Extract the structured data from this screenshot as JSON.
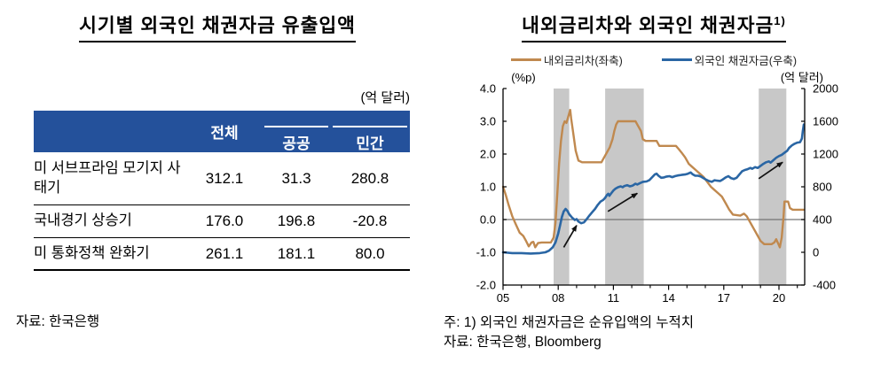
{
  "page": {
    "background": "#FFFFFF"
  },
  "chart_data": [
    {
      "type": "table",
      "title": "시기별 외국인 채권자금 유출입액",
      "unit_label": "(억 달러)",
      "columns": [
        "전체",
        "공공",
        "민간"
      ],
      "rows": [
        {
          "label": "미 서브프라임 모기지 사태기",
          "values": [
            "312.1",
            "31.3",
            "280.8"
          ]
        },
        {
          "label": "국내경기 상승기",
          "values": [
            "176.0",
            "196.8",
            "-20.8"
          ]
        },
        {
          "label": "미 통화정책 완화기",
          "values": [
            "261.1",
            "181.1",
            "80.0"
          ]
        }
      ],
      "source": "자료: 한국은행",
      "header_bg": "#24519B",
      "header_text_color": "#FFFFFF"
    },
    {
      "type": "line",
      "title": "내외금리차와 외국인 채권자금",
      "title_footnote_marker": "1)",
      "legend": [
        {
          "label": "내외금리차(좌축)",
          "color": "#C0894F"
        },
        {
          "label": "외국인 채권자금(우축)",
          "color": "#2A66A4"
        }
      ],
      "left_axis": {
        "label": "(%p)",
        "range": [
          -2.0,
          4.0
        ],
        "ticks": [
          "4.0",
          "3.0",
          "2.0",
          "1.0",
          "0.0",
          "-1.0",
          "-2.0"
        ]
      },
      "right_axis": {
        "label": "(억 달러)",
        "range": [
          -400,
          2000
        ],
        "ticks": [
          "2000",
          "1600",
          "1200",
          "800",
          "400",
          "0",
          "-400"
        ]
      },
      "x_axis": {
        "range": [
          2005,
          2021.4
        ],
        "tick_years": [
          2005,
          2008,
          2011,
          2014,
          2017,
          2020
        ],
        "tick_labels": [
          "05",
          "08",
          "11",
          "14",
          "17",
          "20"
        ],
        "minor_tick_every_year": true
      },
      "shaded_bands": [
        [
          2007.75,
          2008.6
        ],
        [
          2010.55,
          2012.65
        ],
        [
          2018.9,
          2020.4
        ]
      ],
      "band_color": "#C8C8C8",
      "zero_line": {
        "value": 0.0,
        "color": "#737373"
      },
      "series": [
        {
          "name": "내외금리차(좌축)",
          "axis": "left",
          "color": "#C0894F",
          "width": 2.4,
          "points": [
            [
              2005.0,
              1.0
            ],
            [
              2005.15,
              0.75
            ],
            [
              2005.3,
              0.45
            ],
            [
              2005.5,
              0.1
            ],
            [
              2005.7,
              -0.15
            ],
            [
              2005.9,
              -0.4
            ],
            [
              2006.1,
              -0.5
            ],
            [
              2006.25,
              -0.65
            ],
            [
              2006.4,
              -0.82
            ],
            [
              2006.55,
              -0.7
            ],
            [
              2006.65,
              -0.68
            ],
            [
              2006.75,
              -0.85
            ],
            [
              2006.9,
              -0.72
            ],
            [
              2007.1,
              -0.7
            ],
            [
              2007.6,
              -0.7
            ],
            [
              2007.75,
              -0.55
            ],
            [
              2007.85,
              -0.1
            ],
            [
              2007.95,
              0.8
            ],
            [
              2008.05,
              1.7
            ],
            [
              2008.15,
              2.4
            ],
            [
              2008.25,
              2.85
            ],
            [
              2008.35,
              3.0
            ],
            [
              2008.45,
              2.95
            ],
            [
              2008.55,
              3.15
            ],
            [
              2008.65,
              3.35
            ],
            [
              2008.7,
              3.1
            ],
            [
              2008.8,
              2.7
            ],
            [
              2008.95,
              2.1
            ],
            [
              2009.1,
              1.8
            ],
            [
              2009.3,
              1.75
            ],
            [
              2010.35,
              1.75
            ],
            [
              2010.5,
              1.9
            ],
            [
              2010.65,
              2.05
            ],
            [
              2010.8,
              2.2
            ],
            [
              2010.95,
              2.45
            ],
            [
              2011.05,
              2.7
            ],
            [
              2011.15,
              2.9
            ],
            [
              2011.25,
              3.0
            ],
            [
              2012.2,
              3.0
            ],
            [
              2012.35,
              2.85
            ],
            [
              2012.5,
              2.7
            ],
            [
              2012.6,
              2.45
            ],
            [
              2012.75,
              2.4
            ],
            [
              2013.35,
              2.4
            ],
            [
              2013.5,
              2.25
            ],
            [
              2014.4,
              2.25
            ],
            [
              2014.55,
              2.15
            ],
            [
              2014.7,
              2.05
            ],
            [
              2014.9,
              1.9
            ],
            [
              2015.1,
              1.7
            ],
            [
              2015.3,
              1.6
            ],
            [
              2015.5,
              1.5
            ],
            [
              2015.7,
              1.4
            ],
            [
              2015.9,
              1.3
            ],
            [
              2016.1,
              1.15
            ],
            [
              2016.3,
              1.0
            ],
            [
              2016.5,
              0.9
            ],
            [
              2016.7,
              0.8
            ],
            [
              2016.9,
              0.7
            ],
            [
              2017.1,
              0.5
            ],
            [
              2017.3,
              0.3
            ],
            [
              2017.5,
              0.15
            ],
            [
              2017.9,
              0.12
            ],
            [
              2018.1,
              0.18
            ],
            [
              2018.25,
              0.1
            ],
            [
              2018.4,
              -0.05
            ],
            [
              2018.6,
              -0.25
            ],
            [
              2018.8,
              -0.45
            ],
            [
              2019.0,
              -0.65
            ],
            [
              2019.2,
              -0.75
            ],
            [
              2019.6,
              -0.75
            ],
            [
              2019.75,
              -0.7
            ],
            [
              2019.85,
              -0.6
            ],
            [
              2019.95,
              -0.72
            ],
            [
              2020.05,
              -0.85
            ],
            [
              2020.15,
              -0.55
            ],
            [
              2020.25,
              0.1
            ],
            [
              2020.3,
              0.55
            ],
            [
              2020.5,
              0.55
            ],
            [
              2020.6,
              0.35
            ],
            [
              2020.75,
              0.3
            ],
            [
              2021.35,
              0.3
            ]
          ]
        },
        {
          "name": "외국인 채권자금(우축)",
          "axis": "right",
          "color": "#2A66A4",
          "width": 2.6,
          "points": [
            [
              2005.0,
              0
            ],
            [
              2005.5,
              -10
            ],
            [
              2006.0,
              -10
            ],
            [
              2006.5,
              -15
            ],
            [
              2007.0,
              -10
            ],
            [
              2007.3,
              0
            ],
            [
              2007.5,
              20
            ],
            [
              2007.7,
              60
            ],
            [
              2007.85,
              120
            ],
            [
              2008.0,
              230
            ],
            [
              2008.1,
              330
            ],
            [
              2008.2,
              430
            ],
            [
              2008.3,
              500
            ],
            [
              2008.4,
              530
            ],
            [
              2008.5,
              505
            ],
            [
              2008.6,
              465
            ],
            [
              2008.75,
              425
            ],
            [
              2008.9,
              395
            ],
            [
              2009.0,
              405
            ],
            [
              2009.1,
              375
            ],
            [
              2009.25,
              355
            ],
            [
              2009.4,
              365
            ],
            [
              2009.55,
              405
            ],
            [
              2009.7,
              450
            ],
            [
              2009.85,
              490
            ],
            [
              2010.0,
              530
            ],
            [
              2010.15,
              580
            ],
            [
              2010.3,
              620
            ],
            [
              2010.45,
              640
            ],
            [
              2010.55,
              665
            ],
            [
              2010.65,
              700
            ],
            [
              2010.72,
              715
            ],
            [
              2010.78,
              690
            ],
            [
              2010.9,
              725
            ],
            [
              2011.0,
              755
            ],
            [
              2011.1,
              775
            ],
            [
              2011.25,
              795
            ],
            [
              2011.4,
              805
            ],
            [
              2011.5,
              795
            ],
            [
              2011.6,
              810
            ],
            [
              2011.75,
              820
            ],
            [
              2011.9,
              805
            ],
            [
              2012.05,
              815
            ],
            [
              2012.2,
              838
            ],
            [
              2012.3,
              828
            ],
            [
              2012.45,
              845
            ],
            [
              2012.6,
              860
            ],
            [
              2012.8,
              865
            ],
            [
              2012.95,
              880
            ],
            [
              2013.1,
              915
            ],
            [
              2013.25,
              950
            ],
            [
              2013.35,
              960
            ],
            [
              2013.45,
              935
            ],
            [
              2013.6,
              910
            ],
            [
              2013.75,
              915
            ],
            [
              2013.9,
              925
            ],
            [
              2014.05,
              930
            ],
            [
              2014.2,
              918
            ],
            [
              2014.35,
              930
            ],
            [
              2014.5,
              938
            ],
            [
              2014.7,
              945
            ],
            [
              2014.9,
              950
            ],
            [
              2015.05,
              960
            ],
            [
              2015.2,
              975
            ],
            [
              2015.3,
              955
            ],
            [
              2015.45,
              935
            ],
            [
              2015.6,
              935
            ],
            [
              2015.75,
              925
            ],
            [
              2015.9,
              905
            ],
            [
              2016.05,
              885
            ],
            [
              2016.2,
              870
            ],
            [
              2016.35,
              860
            ],
            [
              2016.5,
              880
            ],
            [
              2016.65,
              875
            ],
            [
              2016.8,
              870
            ],
            [
              2016.95,
              890
            ],
            [
              2017.1,
              915
            ],
            [
              2017.25,
              930
            ],
            [
              2017.4,
              905
            ],
            [
              2017.55,
              895
            ],
            [
              2017.7,
              910
            ],
            [
              2017.85,
              950
            ],
            [
              2018.0,
              990
            ],
            [
              2018.15,
              1005
            ],
            [
              2018.3,
              1015
            ],
            [
              2018.45,
              1030
            ],
            [
              2018.55,
              1020
            ],
            [
              2018.7,
              1040
            ],
            [
              2018.85,
              1030
            ],
            [
              2019.0,
              1055
            ],
            [
              2019.15,
              1080
            ],
            [
              2019.3,
              1100
            ],
            [
              2019.45,
              1110
            ],
            [
              2019.55,
              1095
            ],
            [
              2019.7,
              1125
            ],
            [
              2019.85,
              1155
            ],
            [
              2020.0,
              1175
            ],
            [
              2020.15,
              1190
            ],
            [
              2020.3,
              1215
            ],
            [
              2020.45,
              1240
            ],
            [
              2020.55,
              1275
            ],
            [
              2020.7,
              1305
            ],
            [
              2020.85,
              1325
            ],
            [
              2021.0,
              1340
            ],
            [
              2021.15,
              1345
            ],
            [
              2021.25,
              1390
            ],
            [
              2021.3,
              1480
            ],
            [
              2021.35,
              1560
            ]
          ]
        }
      ],
      "arrows": [
        {
          "from": [
            2008.3,
            -0.85
          ],
          "to": [
            2009.0,
            -0.18
          ]
        },
        {
          "from": [
            2010.7,
            0.25
          ],
          "to": [
            2012.3,
            0.8
          ]
        },
        {
          "from": [
            2018.9,
            1.25
          ],
          "to": [
            2020.2,
            1.75
          ]
        }
      ],
      "notes": [
        "주: 1) 외국인 채권자금은 순유입액의 누적치",
        "자료: 한국은행, Bloomberg"
      ]
    }
  ]
}
